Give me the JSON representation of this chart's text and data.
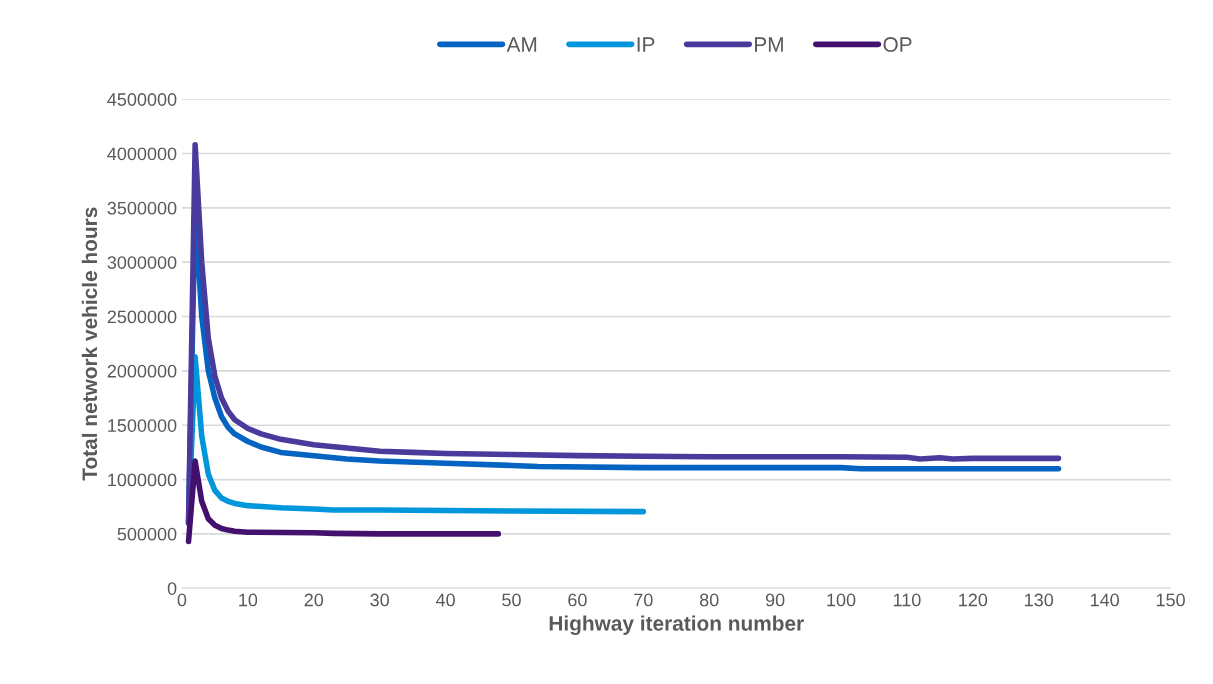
{
  "chart_data": {
    "type": "line",
    "xlabel": "Highway iteration number",
    "ylabel": "Total network vehicle hours",
    "xlim": [
      0,
      150
    ],
    "xticks": [
      0,
      10,
      20,
      30,
      40,
      50,
      60,
      70,
      80,
      90,
      100,
      110,
      120,
      130,
      140,
      150
    ],
    "ylim": [
      0,
      4500000
    ],
    "yticks": [
      0,
      500000,
      1000000,
      1500000,
      2000000,
      2500000,
      3000000,
      3500000,
      4000000,
      4500000
    ],
    "grid": "y",
    "legend": "top",
    "marker": "none",
    "line_style": "solid",
    "series": [
      {
        "name": "AM",
        "color": "#0563c1",
        "x": [
          1,
          2,
          3,
          4,
          5,
          6,
          7,
          8,
          10,
          12,
          15,
          20,
          25,
          30,
          40,
          50,
          54,
          70,
          100,
          103,
          133
        ],
        "values": [
          600000,
          3500000,
          2500000,
          2000000,
          1750000,
          1580000,
          1480000,
          1420000,
          1350000,
          1300000,
          1250000,
          1220000,
          1190000,
          1170000,
          1150000,
          1130000,
          1120000,
          1110000,
          1110000,
          1100000,
          1100000
        ]
      },
      {
        "name": "IP",
        "color": "#0096dc",
        "x": [
          1,
          2,
          3,
          4,
          5,
          6,
          7,
          8,
          10,
          15,
          20,
          23,
          30,
          40,
          50,
          70
        ],
        "values": [
          600000,
          2130000,
          1400000,
          1050000,
          900000,
          830000,
          800000,
          780000,
          760000,
          740000,
          730000,
          720000,
          720000,
          715000,
          710000,
          705000
        ]
      },
      {
        "name": "PM",
        "color": "#4a3a9c",
        "x": [
          1,
          2,
          3,
          4,
          5,
          6,
          7,
          8,
          10,
          12,
          15,
          20,
          25,
          30,
          35,
          40,
          50,
          60,
          70,
          80,
          100,
          110,
          112,
          115,
          117,
          120,
          133
        ],
        "values": [
          600000,
          4080000,
          3000000,
          2300000,
          1950000,
          1750000,
          1630000,
          1550000,
          1470000,
          1420000,
          1370000,
          1320000,
          1290000,
          1260000,
          1250000,
          1240000,
          1230000,
          1220000,
          1215000,
          1210000,
          1210000,
          1205000,
          1190000,
          1200000,
          1190000,
          1195000,
          1195000
        ]
      },
      {
        "name": "OP",
        "color": "#44106e",
        "x": [
          1,
          2,
          3,
          4,
          5,
          6,
          7,
          8,
          10,
          20,
          23,
          30,
          48
        ],
        "values": [
          430000,
          1170000,
          800000,
          640000,
          580000,
          550000,
          535000,
          525000,
          515000,
          510000,
          505000,
          500000,
          500000
        ]
      }
    ]
  }
}
